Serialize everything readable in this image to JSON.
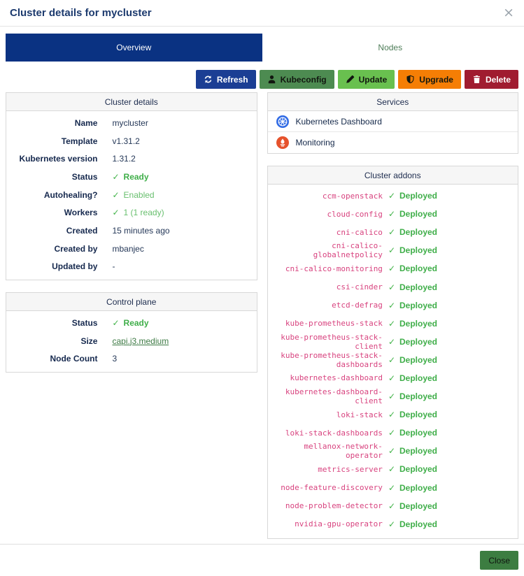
{
  "title": "Cluster details for mycluster",
  "glyphs": {
    "close": "×",
    "check": "✓"
  },
  "tabs": {
    "overview": "Overview",
    "nodes": "Nodes"
  },
  "actions": [
    {
      "name": "refresh",
      "label": "Refresh",
      "icon": "refresh-icon",
      "bg": "#1b3e94",
      "fg": "#ffffff"
    },
    {
      "name": "kubeconfig",
      "label": "Kubeconfig",
      "icon": "person-icon",
      "bg": "#4d8b51",
      "fg": "#121710"
    },
    {
      "name": "update",
      "label": "Update",
      "icon": "pencil-icon",
      "bg": "#69c04f",
      "fg": "#121710"
    },
    {
      "name": "upgrade",
      "label": "Upgrade",
      "icon": "shield-icon",
      "bg": "#f57e05",
      "fg": "#121710"
    },
    {
      "name": "delete",
      "label": "Delete",
      "icon": "trash-icon",
      "bg": "#a01c30",
      "fg": "#ffffff"
    }
  ],
  "cluster_details": {
    "title": "Cluster details",
    "rows": [
      {
        "label": "Name",
        "value": "mycluster",
        "kind": "plain"
      },
      {
        "label": "Template",
        "value": "v1.31.2",
        "kind": "plain"
      },
      {
        "label": "Kubernetes version",
        "value": "1.31.2",
        "kind": "plain"
      },
      {
        "label": "Status",
        "value": "Ready",
        "kind": "check-bold"
      },
      {
        "label": "Autohealing?",
        "value": "Enabled",
        "kind": "check"
      },
      {
        "label": "Workers",
        "value": "1 (1 ready)",
        "kind": "check"
      },
      {
        "label": "Created",
        "value": "15 minutes ago",
        "kind": "plain"
      },
      {
        "label": "Created by",
        "value": "mbanjec",
        "kind": "plain"
      },
      {
        "label": "Updated by",
        "value": "-",
        "kind": "plain"
      }
    ]
  },
  "control_plane": {
    "title": "Control plane",
    "rows": [
      {
        "label": "Status",
        "value": "Ready",
        "kind": "check-bold"
      },
      {
        "label": "Size",
        "value": "capi.j3.medium",
        "kind": "link"
      },
      {
        "label": "Node Count",
        "value": "3",
        "kind": "plain"
      }
    ]
  },
  "services": {
    "title": "Services",
    "items": [
      {
        "label": "Kubernetes Dashboard",
        "icon": "kubernetes-icon"
      },
      {
        "label": "Monitoring",
        "icon": "prometheus-icon"
      }
    ]
  },
  "cluster_addons": {
    "title": "Cluster addons",
    "deployed_label": "Deployed",
    "items": [
      "ccm-openstack",
      "cloud-config",
      "cni-calico",
      "cni-calico-globalnetpolicy",
      "cni-calico-monitoring",
      "csi-cinder",
      "etcd-defrag",
      "kube-prometheus-stack",
      "kube-prometheus-stack-client",
      "kube-prometheus-stack-dashboards",
      "kubernetes-dashboard",
      "kubernetes-dashboard-client",
      "loki-stack",
      "loki-stack-dashboards",
      "mellanox-network-operator",
      "metrics-server",
      "node-feature-discovery",
      "node-problem-detector",
      "nvidia-gpu-operator"
    ]
  },
  "footer": {
    "close_label": "Close"
  },
  "colors": {
    "tab_active_bg": "#0a3282",
    "check_green": "#43b44a",
    "status_green_bold": "#3fae49",
    "status_green_soft": "#68bf6e",
    "addon_pink": "#d8437f",
    "link_green": "#3d7a44",
    "kubernetes_blue": "#326ce5",
    "prometheus_orange": "#e6522c"
  }
}
